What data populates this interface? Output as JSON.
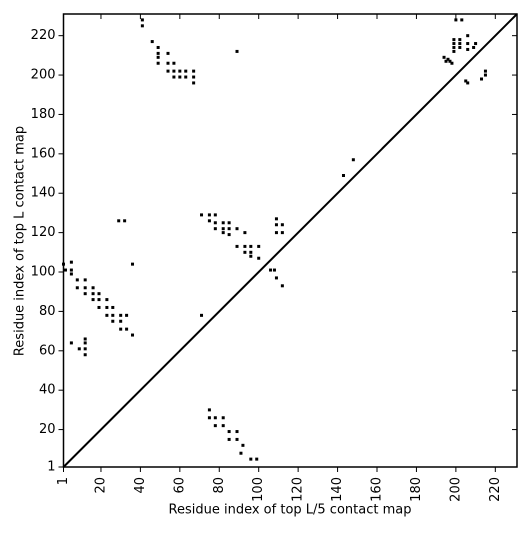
{
  "chart_data": {
    "type": "scatter",
    "xlabel": "Residue index of top L/5 contact map",
    "ylabel": "Residue index of top L contact map",
    "xlim": [
      1,
      231
    ],
    "ylim": [
      1,
      231
    ],
    "xticks": [
      1,
      20,
      40,
      60,
      80,
      100,
      120,
      140,
      160,
      180,
      200,
      220
    ],
    "yticks": [
      1,
      20,
      40,
      60,
      80,
      100,
      120,
      140,
      160,
      180,
      200,
      220
    ],
    "series": [
      {
        "type": "scatter",
        "color": "#000000",
        "x": [
          41,
          41,
          46,
          49,
          49,
          49,
          49,
          54,
          54,
          54,
          57,
          57,
          57,
          60,
          60,
          63,
          63,
          67,
          67,
          67,
          89,
          200,
          203,
          194,
          195,
          196,
          197,
          198,
          199,
          199,
          199,
          199,
          202,
          202,
          202,
          206,
          206,
          209,
          205,
          206,
          206,
          210,
          213,
          215,
          215,
          148,
          143,
          71,
          75,
          78,
          75,
          78,
          82,
          85,
          78,
          82,
          85,
          89,
          93,
          82,
          85,
          89,
          93,
          96,
          100,
          93,
          96,
          100,
          96,
          109,
          109,
          112,
          109,
          112,
          106,
          108,
          109,
          112,
          71,
          1,
          5,
          5,
          5,
          8,
          8,
          12,
          12,
          12,
          16,
          16,
          16,
          19,
          19,
          19,
          23,
          23,
          23,
          26,
          26,
          26,
          30,
          30,
          30,
          33,
          33,
          36,
          36,
          29,
          32,
          5,
          9,
          12,
          12,
          12,
          12,
          2,
          75,
          75,
          78,
          82,
          78,
          82,
          85,
          89,
          85,
          89,
          92,
          91,
          96,
          99
        ],
        "y": [
          228,
          225,
          217,
          214,
          211,
          209,
          206,
          211,
          206,
          202,
          206,
          202,
          199,
          202,
          199,
          202,
          199,
          202,
          199,
          196,
          212,
          228,
          228,
          209,
          207,
          208,
          207,
          206,
          218,
          216,
          214,
          212,
          218,
          216,
          214,
          216,
          213,
          214,
          197,
          196,
          220,
          216,
          198,
          202,
          200,
          157,
          149,
          129,
          129,
          129,
          126,
          125,
          125,
          125,
          122,
          122,
          122,
          122,
          120,
          120,
          119,
          113,
          113,
          113,
          113,
          110,
          110,
          107,
          108,
          127,
          124,
          124,
          120,
          120,
          101,
          101,
          97,
          93,
          78,
          104,
          105,
          101,
          99,
          96,
          92,
          96,
          92,
          89,
          92,
          89,
          86,
          89,
          86,
          82,
          86,
          82,
          78,
          82,
          78,
          75,
          78,
          75,
          71,
          78,
          71,
          68,
          104,
          126,
          126,
          64,
          61,
          64,
          61,
          58,
          66,
          101,
          30,
          26,
          26,
          26,
          22,
          22,
          19,
          19,
          15,
          15,
          12,
          8,
          5,
          5
        ]
      },
      {
        "type": "line",
        "color": "#000000",
        "x": [
          1,
          231
        ],
        "y": [
          1,
          231
        ]
      }
    ]
  }
}
